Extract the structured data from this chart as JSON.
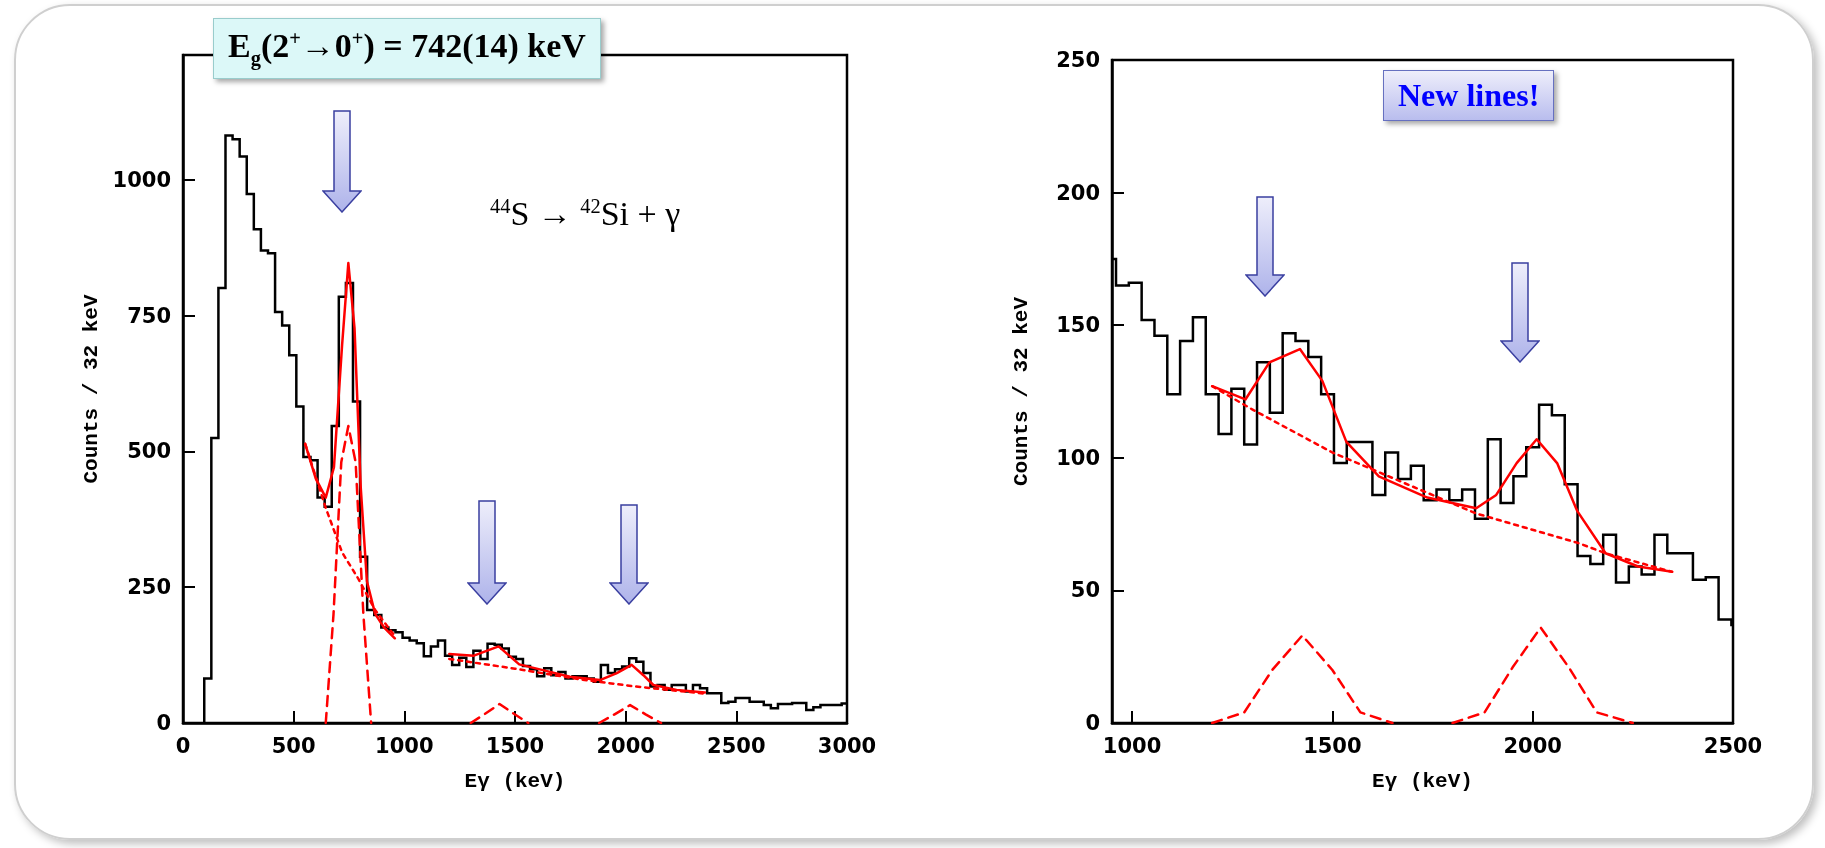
{
  "chart_data": [
    {
      "type": "step",
      "xlabel": "Eγ (keV)",
      "ylabel": "Counts / 32 keV",
      "xlim": [
        0,
        3000
      ],
      "xticks": [
        0,
        500,
        1000,
        1500,
        2000,
        2500,
        3000
      ],
      "ylim": [
        0,
        1230
      ],
      "yticks": [
        0,
        250,
        500,
        750,
        1000
      ],
      "annotations": [
        "E$_{g}$(2$^{+}$→0$^{+}$) = 742(14) keV",
        "$^{44}$S → $^{42}$Si + γ"
      ],
      "series": [
        {
          "color": "#000000",
          "x": [
            96,
            96,
            128,
            160,
            192,
            224,
            256,
            288,
            320,
            352,
            384,
            416,
            448,
            480,
            512,
            544,
            576,
            608,
            640,
            672,
            704,
            736,
            768,
            800,
            832,
            864,
            896,
            928,
            960,
            992,
            1024,
            1056,
            1088,
            1120,
            1152,
            1184,
            1216,
            1248,
            1280,
            1312,
            1344,
            1376,
            1408,
            1440,
            1472,
            1504,
            1536,
            1568,
            1600,
            1632,
            1664,
            1696,
            1728,
            1760,
            1792,
            1824,
            1856,
            1888,
            1920,
            1952,
            1984,
            2016,
            2048,
            2080,
            2112,
            2144,
            2176,
            2208,
            2240,
            2272,
            2304,
            2336,
            2368,
            2400,
            2432,
            2464,
            2496,
            2528,
            2560,
            2592,
            2624,
            2656,
            2688,
            2720,
            2752,
            2784,
            2816,
            2848,
            2880,
            2912,
            2944,
            2976,
            3000
          ],
          "values": [
            0,
            82,
            525,
            801,
            1082,
            1075,
            1043,
            974,
            909,
            870,
            865,
            757,
            732,
            677,
            583,
            490,
            484,
            415,
            398,
            547,
            785,
            810,
            592,
            306,
            208,
            199,
            176,
            171,
            167,
            157,
            152,
            147,
            123,
            141,
            152,
            124,
            107,
            120,
            103,
            133,
            118,
            146,
            144,
            137,
            122,
            118,
            105,
            99,
            86,
            101,
            88,
            94,
            82,
            86,
            86,
            82,
            76,
            107,
            92,
            99,
            104,
            119,
            113,
            92,
            67,
            70,
            61,
            70,
            70,
            58,
            70,
            64,
            55,
            55,
            37,
            39,
            46,
            46,
            39,
            39,
            33,
            27,
            35,
            35,
            37,
            37,
            24,
            29,
            33,
            33,
            33,
            36,
            36
          ]
        },
        {
          "type": "line",
          "color": "#ff0000",
          "line_style": "solid",
          "x": [
            552,
            600,
            645,
            682,
            719,
            747,
            775,
            803,
            831,
            868,
            910,
            957,
            1080,
            1203,
            1314,
            1426,
            1519,
            1640,
            1748,
            1884,
            1960,
            2027,
            2080,
            2125,
            2230,
            2358
          ],
          "values": [
            514,
            450,
            415,
            471,
            697,
            847,
            727,
            434,
            261,
            201,
            175,
            156,
            null,
            127,
            124,
            141,
            108,
            96,
            85,
            79,
            92,
            107,
            88,
            70,
            61,
            56
          ]
        },
        {
          "type": "line",
          "color": "#ff0000",
          "line_style": "dotted",
          "x": [
            552,
            645,
            719,
            793,
            868,
            957,
            1080,
            1203,
            1500,
            1800,
            2027,
            2358
          ],
          "values": [
            514,
            396,
            314,
            265,
            208,
            160,
            null,
            118,
            100,
            80,
            68,
            54
          ]
        },
        {
          "type": "line",
          "color": "#ff0000",
          "line_style": "dashed",
          "x": [
            645,
            680,
            715,
            747,
            780,
            815,
            850,
            1075,
            1300,
            1365,
            1430,
            1495,
            1560,
            1720,
            1880,
            1950,
            2020,
            2090,
            2160
          ],
          "values": [
            0,
            200,
            480,
            547,
            480,
            200,
            0,
            null,
            0,
            17,
            35,
            17,
            0,
            null,
            0,
            16,
            33,
            16,
            0
          ]
        }
      ]
    },
    {
      "type": "step",
      "xlabel": "Eγ (keV)",
      "ylabel": "Counts / 32 keV",
      "xlim": [
        950,
        2500
      ],
      "xticks": [
        1000,
        1500,
        2000,
        2500
      ],
      "ylim": [
        0,
        250
      ],
      "yticks": [
        0,
        50,
        100,
        150,
        200,
        250
      ],
      "annotations": [
        "New lines!"
      ],
      "series": [
        {
          "color": "#000000",
          "x": [
            950,
            960,
            992,
            1024,
            1056,
            1088,
            1120,
            1152,
            1184,
            1216,
            1248,
            1280,
            1312,
            1344,
            1376,
            1408,
            1440,
            1472,
            1504,
            1536,
            1568,
            1600,
            1632,
            1664,
            1696,
            1728,
            1760,
            1792,
            1824,
            1856,
            1888,
            1920,
            1952,
            1984,
            2016,
            2048,
            2080,
            2112,
            2144,
            2176,
            2208,
            2240,
            2272,
            2304,
            2336,
            2368,
            2400,
            2432,
            2464,
            2496,
            2500
          ],
          "values": [
            175,
            165,
            166,
            152,
            146,
            124,
            144,
            153,
            124,
            109,
            126,
            105,
            136,
            117,
            147,
            144,
            138,
            124,
            98,
            106,
            106,
            86,
            102,
            92,
            97,
            84,
            88,
            84,
            88,
            77,
            107,
            83,
            93,
            104,
            120,
            116,
            90,
            63,
            60,
            71,
            53,
            59,
            56,
            71,
            64,
            64,
            54,
            55,
            39,
            37,
            37
          ]
        },
        {
          "type": "line",
          "color": "#ff0000",
          "line_style": "solid",
          "x": [
            1200,
            1283,
            1343,
            1419,
            1475,
            1535,
            1616,
            1737,
            1859,
            1909,
            1960,
            2010,
            2061,
            2111,
            2182,
            2263,
            2348
          ],
          "values": [
            127,
            122,
            136,
            141,
            129,
            106,
            93,
            85,
            81,
            86,
            98,
            107,
            98,
            80,
            64,
            59,
            57
          ]
        },
        {
          "type": "line",
          "color": "#ff0000",
          "line_style": "dotted",
          "x": [
            1200,
            1303,
            1500,
            1859,
            2111,
            2182,
            2348
          ],
          "values": [
            127,
            118,
            102,
            79,
            68,
            64,
            57
          ]
        },
        {
          "type": "line",
          "color": "#ff0000",
          "line_style": "dashed",
          "x": [
            1200,
            1280,
            1350,
            1425,
            1500,
            1570,
            1650,
            1725,
            1800,
            1880,
            1950,
            2020,
            2090,
            2160,
            2250
          ],
          "values": [
            0,
            4,
            20,
            33,
            20,
            4,
            0,
            null,
            0,
            4,
            21,
            36,
            21,
            4,
            0
          ]
        }
      ]
    }
  ]
}
